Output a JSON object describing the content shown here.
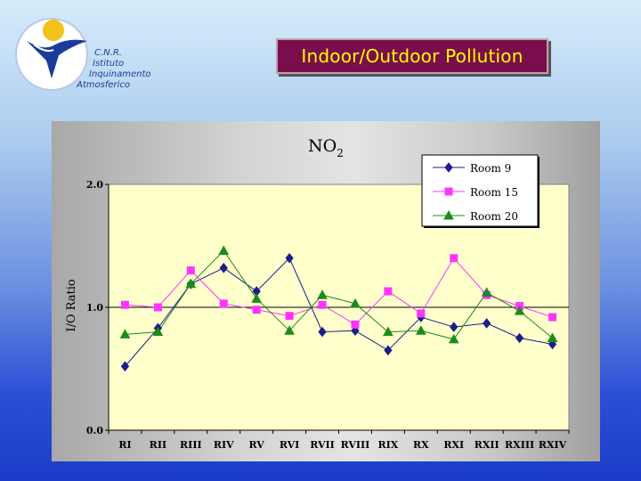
{
  "logo": {
    "line1": "C.N.R.",
    "line2": "Istituto",
    "line3": "Inquinamento",
    "line4": "Atmosferico"
  },
  "header": {
    "title": "Indoor/Outdoor Pollution"
  },
  "colors": {
    "plot_bg": "#ffffcc",
    "room9": "#1c1c8c",
    "room15": "#ff33ff",
    "room20": "#1a8c1a",
    "title_bg": "#7a0e4c",
    "title_text": "#ffff00"
  },
  "chart_data": {
    "type": "line",
    "title_main": "NO",
    "title_sub": "2",
    "xlabel": "",
    "ylabel": "I/O Ratio",
    "ylim": [
      0,
      2
    ],
    "yticks": [
      "0.0",
      "1.0",
      "2.0"
    ],
    "reference_line": 1.0,
    "legend_position": "top-right",
    "categories": [
      "RI",
      "RII",
      "RIII",
      "RIV",
      "RV",
      "RVI",
      "RVII",
      "RVIII",
      "RIX",
      "RX",
      "RXI",
      "RXII",
      "RXIII",
      "RXIV"
    ],
    "series": [
      {
        "name": "Room 9",
        "marker": "diamond",
        "values": [
          0.52,
          0.83,
          1.19,
          1.32,
          1.13,
          1.4,
          0.8,
          0.81,
          0.65,
          0.92,
          0.84,
          0.87,
          0.75,
          0.7
        ]
      },
      {
        "name": "Room 15",
        "marker": "square",
        "values": [
          1.02,
          1.0,
          1.3,
          1.03,
          0.98,
          0.93,
          1.02,
          0.86,
          1.13,
          0.95,
          1.4,
          1.1,
          1.01,
          0.92
        ]
      },
      {
        "name": "Room 20",
        "marker": "triangle",
        "values": [
          0.78,
          0.8,
          1.19,
          1.46,
          1.07,
          0.81,
          1.1,
          1.03,
          0.8,
          0.81,
          0.74,
          1.12,
          0.97,
          0.75
        ]
      }
    ]
  }
}
